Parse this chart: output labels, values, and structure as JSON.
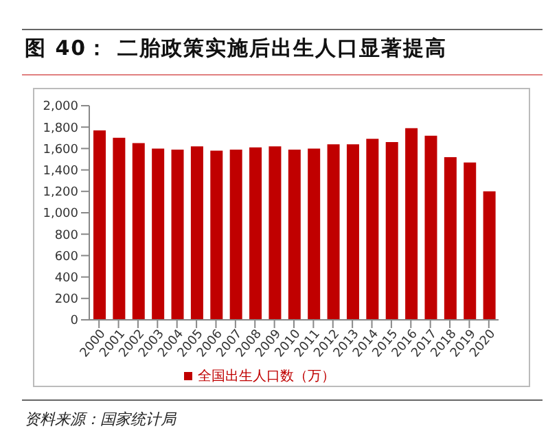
{
  "chart_data": {
    "type": "bar",
    "title": "图 40：  二胎政策实施后出生人口显著提高",
    "categories": [
      "2000",
      "2001",
      "2002",
      "2003",
      "2004",
      "2005",
      "2006",
      "2007",
      "2008",
      "2009",
      "2010",
      "2011",
      "2012",
      "2013",
      "2014",
      "2015",
      "2016",
      "2017",
      "2018",
      "2019",
      "2020"
    ],
    "series": [
      {
        "name": "全国出生人口数（万）",
        "color": "#c00000",
        "values": [
          1770,
          1700,
          1650,
          1600,
          1590,
          1620,
          1580,
          1590,
          1610,
          1620,
          1590,
          1600,
          1640,
          1640,
          1690,
          1660,
          1790,
          1720,
          1520,
          1470,
          1200
        ]
      }
    ],
    "ylim": [
      0,
      2000
    ],
    "yticks": [
      {
        "value": 0,
        "label": "0"
      },
      {
        "value": 200,
        "label": "200"
      },
      {
        "value": 400,
        "label": "400"
      },
      {
        "value": 600,
        "label": "600"
      },
      {
        "value": 800,
        "label": "800"
      },
      {
        "value": 1000,
        "label": "1,000"
      },
      {
        "value": 1200,
        "label": "1,200"
      },
      {
        "value": 1400,
        "label": "1,400"
      },
      {
        "value": 1600,
        "label": "1,600"
      },
      {
        "value": 1800,
        "label": "1,800"
      },
      {
        "value": 2000,
        "label": "2,000"
      }
    ],
    "legend": "bottom",
    "grid": false,
    "annotations": [
      "资料来源：国家统计局"
    ]
  }
}
